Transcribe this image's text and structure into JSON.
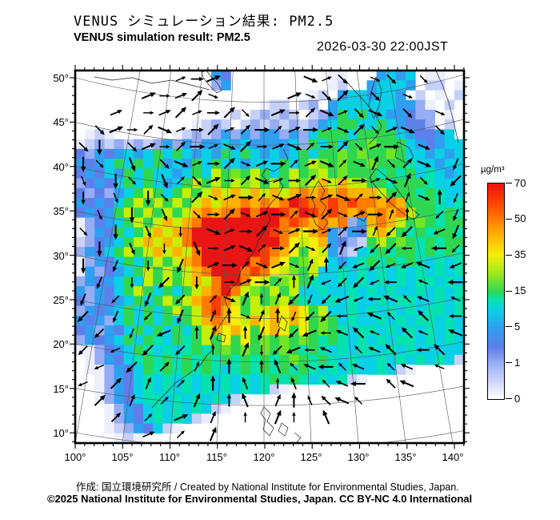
{
  "header": {
    "title_jp": "VENUS シミュレーション結果: PM2.5",
    "title_en": "VENUS simulation result: PM2.5",
    "timestamp": "2026-03-30 22:00JST"
  },
  "footer": {
    "credit": "作成: 国立環境研究所 / Created by National Institute for Environmental Studies, Japan.",
    "copyright": "©2025 National Institute for Environmental Studies, Japan. CC BY-NC 4.0 International"
  },
  "colorbar": {
    "unit": "µg/m³",
    "tick_values": [
      "70",
      "50",
      "35",
      "15",
      "5",
      "1",
      "0"
    ],
    "scale_colors": {
      "0": "#ffffff",
      "1": "#96acf3",
      "5": "#2f9ff0",
      "15": "#2fd751",
      "35": "#f4ee0a",
      "50": "#ff7c00",
      "70": "#e91414"
    }
  },
  "axes": {
    "lat_labels": [
      "50°",
      "45°",
      "40°",
      "35°",
      "30°",
      "25°",
      "20°",
      "15°",
      "10°"
    ],
    "lon_labels": [
      "100°",
      "105°",
      "110°",
      "115°",
      "120°",
      "125°",
      "130°",
      "135°",
      "140°"
    ],
    "lat_range": [
      10,
      50
    ],
    "lon_range": [
      100,
      140
    ]
  },
  "chart_data": {
    "type": "heatmap",
    "variable": "PM2.5",
    "title": "VENUS simulation result: PM2.5",
    "time": "2026-03-30 22:00JST",
    "units": "µg/m³",
    "value_breaks": [
      0,
      1,
      5,
      15,
      35,
      50,
      70
    ],
    "domain": {
      "lon": [
        100,
        140
      ],
      "lat": [
        10,
        50
      ]
    },
    "palette": {
      ".": "#ffffff",
      "w": "#eceffc",
      "p": "#c6d1f8",
      "l": "#96acf3",
      "b": "#5d7fea",
      "z": "#2f9ff0",
      "c": "#09cfe7",
      "t": "#04e2af",
      "g": "#2fd751",
      "G": "#72e526",
      "y": "#c6ee08",
      "Y": "#f4ee0a",
      "o": "#ffb300",
      "O": "#ff7c00",
      "r": "#fe3c00",
      "R": "#e91414"
    },
    "grid_note": "40x38 concentration raster, chars map to palette; '.'=outside model domain",
    "grid": [
      "..............zb..........ww...zczc.ww......",
      "..............lz..........wp..zcccz.pp.w...",
      "........................wp.zcczccz.p.w.p.",
      "...................wpp.pl.zcccccczzlw.p.",
      "...............wp.plplp.plzgcgcczzbll.w.",
      "............wplp.plplplplzcggccgczbbl.p.",
      ".wpw......wplplzlzlzzlzlcgggcggggczbbzc.",
      "wplplplplzlzlzzczczzzzclgcgcggGgggczbzcc",
      "blzbzczcgcgczczgcgczczcgcggGgGggGgcczczc",
      "zbzcgcgcgzczgcgcczcccgcgyGgGggGgggtcczcc",
      "bzbczgcgcczcgcygGgygcgygGygGgggtgtgctczc",
      "lbzbcgcgczcgygygyGygygyGyoyoyyggtgggtccc",
      "blblzcgygcgygyoyoyoyoyoOoOoOoooygggtgtcc",
      "zbzbcgygygygyoyooOoOoORrOOrOrOOoOogggtct",
      "bzbzgygygygyoOoOORORRrORrOrOoOoOoOyggtgt",
      "wlbzcgygyoyoORRRRRRRROrOoOoOlzoOoygGgtgg",
      "wlzbgcgyoyoORRRRRRRRrOoYoOzlzbyoygtgtggt",
      "plbzcgyoyoyORRRRRRRRROYyYozblpgygGgtgtgg",
      "lzbcgygyoyoyORRRRRRrOoYgYyzlpctgtggtgtgt",
      "wlzbcgcgygyoORRRRROroYgGyYczctgtgtgtctct",
      "wzlbzcgygygyoORRROrOYyGgycctctctctctctct",
      "lzbzcgcygygyoyORROYygGygtcctctctctcttctc",
      "zlzbcgygcgcgyoOROyGgygycctcctctctcctctct",
      "blzbzcgcgygyoOrOygygGygtcctctcctcttcctct",
      "lzbzcgcgcgygyOroYgyyoYoYgycctctctctcttct",
      "zbzlcgcgcgcgyoOoYyoYoYoYgGgctcctctcttctc",
      "bzlzbcgcgcgcgyoYoYgYoYgYgGgtcttctctctctc",
      "lzbzcgcgtcgtgygYgYgGgGgGgtgtctctcttctctc",
      "wwlbzcgtctctgtgGgGgGgGgtgtctcttctctccccc",
      ".wlzbctgtgtgtgtgtgtgtgGgtgtctcctctctctcp",
      ".wwlzbcgtgtgtgtctgtgtgtgtctctcctcpw.....",
      "..wlzbctctctctctctctgtgtctctpw..........",
      "..wlzbctctctctctctctpw..................",
      "..wlzbcttctctctcpw......................",
      "...wlzbctctctcpw........................",
      "...wlzbctctcpw..........................",
      "...wplzbcpw.............................",
      "....wpw................................."
    ],
    "wind_dir_encoding": "hex digit -> arrow angle = digit*22.5 deg clockwise from east; '.' = no arrow",
    "wind_dirs": [
      "......F0F.....1F2.12.2..",
      "....F0FE1....F12E.2.1...",
      "..F.0FEF0E2.F0E1F21.2.1.",
      ".2F0E1F0EFE0EF0F1E2F1.2.",
      "24.2F0E0F1E0F1E0E2F0.1..",
      "42.3.21F0E1F0EF1E1D2E1.5",
      "3.42.3E2F0E1F0E1E0F1D2.6",
      "4.3.42.E1F0E1F0F1E0ED1C5",
      ".3.4.3.20E1F0E1E1F0DC.65",
      "2.4.3.4.1F0E1F0FE0D66.75",
      ".4.3.4.30F1E0E1ED7668.86",
      "4.5.4.5.F0E1F1DC676779.7",
      ".5.4.6.4.0F0ECD76678.9.8",
      "5.6.5.6.E1DCD6567789A9.9",
      "6.5.6.5.DC1DC5668.9A.A.8",
      ".6.5.7.CD.C556789A9.A9.9",
      "6.7.6.6.C.D46789.A9A.8A.",
      ".7.6.E.D.C.CBA98A9.A9.9.",
      "7.E.D.E.C.B.CB.A98.A9...",
      ".E.D.E.D.CB.DCBA9A......",
      "..E.E.F.D.C.DC.B........",
      "....F.E.D..............."
    ]
  }
}
